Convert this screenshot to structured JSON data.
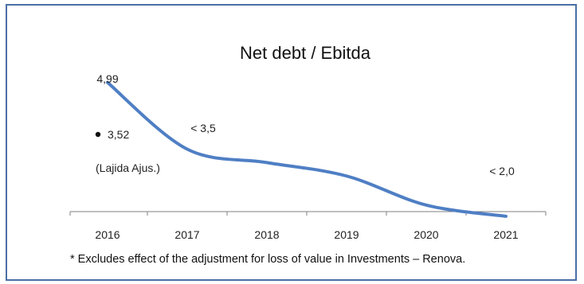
{
  "chart_data": {
    "type": "line",
    "title": "Net debt / Ebitda",
    "categories": [
      "2016",
      "2017",
      "2018",
      "2019",
      "2020",
      "2021"
    ],
    "series": [
      {
        "values": [
          4.99,
          3.5,
          3.2,
          2.9,
          2.25,
          2.0
        ],
        "color": "#4f7fc4"
      }
    ],
    "xlabel": "",
    "ylabel": "",
    "ylim": [
      1.5,
      5.5
    ],
    "grid": false,
    "legend": "none",
    "data_labels": [
      {
        "category": "2016",
        "text": "4,99"
      },
      {
        "category": "2017",
        "text": "< 3,5"
      },
      {
        "category": "2021",
        "text": "< 2,0"
      }
    ],
    "annotations": [
      {
        "category": "2016",
        "marker": "dot",
        "text": "3,52"
      },
      {
        "category": "2016",
        "text": "(Lajida Ajus.)"
      }
    ],
    "footnote": "* Excludes effect of the adjustment for loss of value in Investments – Renova."
  },
  "colors": {
    "line": "#4f7fc4",
    "frame": "#4a6fa5",
    "axis": "#7f7f7f"
  }
}
